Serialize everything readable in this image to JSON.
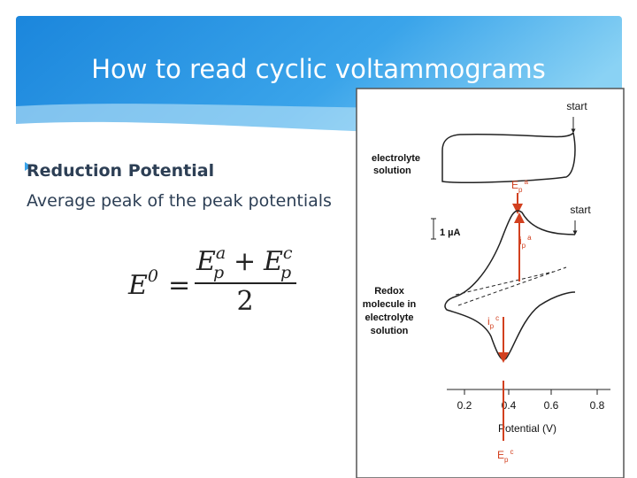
{
  "slide": {
    "title": "How to read cyclic voltammograms",
    "bullets": [
      "Reduction Potential",
      "Average peak of the peak potentials"
    ],
    "formula": {
      "lhs": {
        "base": "E",
        "sup": "0"
      },
      "equals": "=",
      "numerator": [
        {
          "base": "E",
          "sub": "p",
          "sup": "a"
        },
        {
          "op": "+"
        },
        {
          "base": "E",
          "sub": "p",
          "sup": "c"
        }
      ],
      "denominator": "2"
    },
    "figure": {
      "start_top": "start",
      "electrolyte_label": [
        "electrolyte",
        "solution"
      ],
      "epa": {
        "base": "E",
        "sub": "p",
        "sup": "a"
      },
      "start_bottom": "start",
      "scale_bar": "1 µA",
      "ipa": {
        "base": "i",
        "sub": "p",
        "sup": "a"
      },
      "redox_label": [
        "Redox",
        "molecule in",
        "electrolyte",
        "solution"
      ],
      "ipc": {
        "base": "i",
        "sub": "p",
        "sup": "c"
      },
      "x_ticks": [
        "0.2",
        "0.4",
        "0.6",
        "0.8"
      ],
      "x_label": "Potential (V)",
      "epc": {
        "base": "E",
        "sub": "p",
        "sup": "c"
      }
    }
  }
}
